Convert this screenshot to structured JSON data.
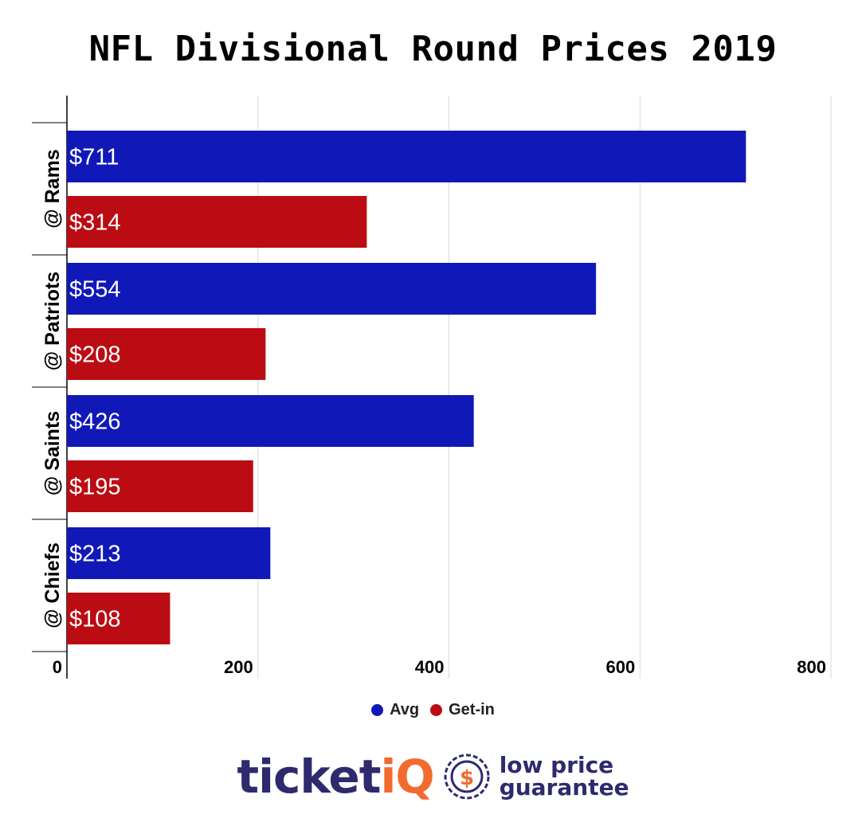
{
  "chart_data": {
    "type": "bar",
    "orientation": "horizontal",
    "title": "NFL Divisional Round Prices 2019",
    "categories": [
      "@ Rams",
      "@ Patriots",
      "@ Saints",
      "@ Chiefs"
    ],
    "series": [
      {
        "name": "Avg",
        "color": "#1019b8",
        "values": [
          711,
          554,
          426,
          213
        ],
        "labels": [
          "$711",
          "$554",
          "$426",
          "$213"
        ]
      },
      {
        "name": "Get-in",
        "color": "#bb0c13",
        "values": [
          314,
          208,
          195,
          108
        ],
        "labels": [
          "$314",
          "$208",
          "$195",
          "$108"
        ]
      }
    ],
    "xlim": [
      0,
      800
    ],
    "xticks": [
      0,
      200,
      400,
      600,
      800
    ],
    "xtick_labels": [
      "0",
      "200",
      "400",
      "600",
      "800"
    ],
    "grid": true,
    "legend_position": "bottom-center"
  },
  "logo": {
    "brand_main": "ticket",
    "brand_accent": "iQ",
    "badge_icon": "dollar-badge-icon",
    "tagline_line1": "low price",
    "tagline_line2": "guarantee"
  }
}
